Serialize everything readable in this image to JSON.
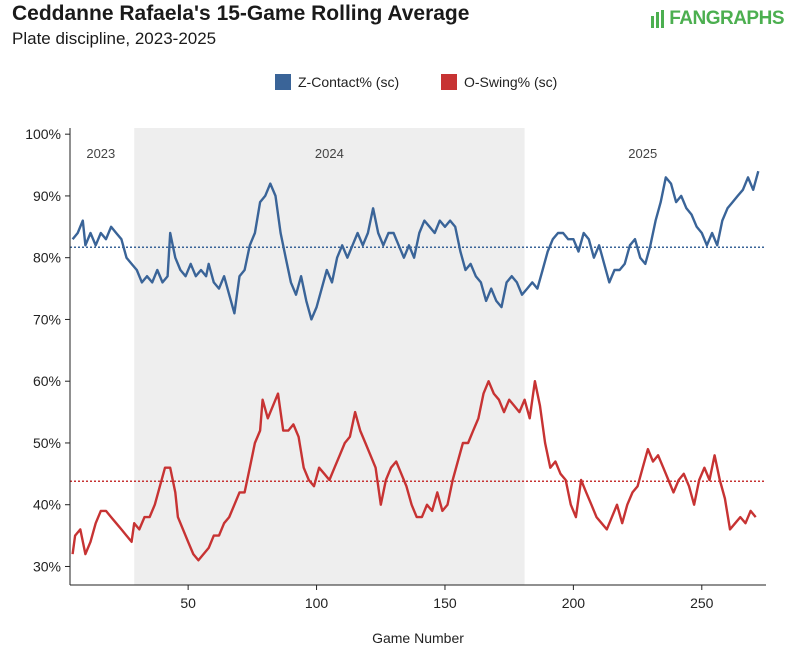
{
  "header": {
    "title": "Ceddanne Rafaela's 15-Game Rolling Average",
    "subtitle": "Plate discipline, 2023-2025",
    "logo": "FANGRAPHS"
  },
  "colors": {
    "zcontact": "#3a6498",
    "oswing": "#c73333",
    "shade": "#eeeeee",
    "logo": "#4caf50"
  },
  "chart_data": {
    "type": "line",
    "xlabel": "Game Number",
    "ylabel": "",
    "xlim": [
      4,
      275
    ],
    "ylim": [
      27,
      101
    ],
    "x_ticks": [
      50,
      100,
      150,
      200,
      250
    ],
    "y_ticks": [
      {
        "value": 30,
        "label": "30%"
      },
      {
        "value": 40,
        "label": "40%"
      },
      {
        "value": 50,
        "label": "50%"
      },
      {
        "value": 60,
        "label": "60%"
      },
      {
        "value": 70,
        "label": "70%"
      },
      {
        "value": 80,
        "label": "80%"
      },
      {
        "value": 90,
        "label": "90%"
      },
      {
        "value": 100,
        "label": "100%"
      }
    ],
    "seasons": [
      {
        "label": "2023",
        "start": 4,
        "end": 29,
        "label_x": 16,
        "shaded": false
      },
      {
        "label": "2024",
        "start": 29,
        "end": 181,
        "label_x": 105,
        "shaded": true
      },
      {
        "label": "2025",
        "start": 181,
        "end": 275,
        "label_x": 227,
        "shaded": false
      }
    ],
    "legend": {
      "position": "top-center"
    },
    "series": [
      {
        "name": "Z-Contact% (sc)",
        "color_key": "zcontact",
        "average": 81.7,
        "points": [
          [
            5,
            83
          ],
          [
            7,
            84
          ],
          [
            9,
            86
          ],
          [
            10,
            82
          ],
          [
            12,
            84
          ],
          [
            14,
            82
          ],
          [
            16,
            84
          ],
          [
            18,
            83
          ],
          [
            20,
            85
          ],
          [
            22,
            84
          ],
          [
            24,
            83
          ],
          [
            26,
            80
          ],
          [
            28,
            79
          ],
          [
            30,
            78
          ],
          [
            32,
            76
          ],
          [
            34,
            77
          ],
          [
            36,
            76
          ],
          [
            38,
            78
          ],
          [
            40,
            76
          ],
          [
            42,
            77
          ],
          [
            43,
            84
          ],
          [
            45,
            80
          ],
          [
            47,
            78
          ],
          [
            49,
            77
          ],
          [
            51,
            79
          ],
          [
            53,
            77
          ],
          [
            55,
            78
          ],
          [
            57,
            77
          ],
          [
            58,
            79
          ],
          [
            60,
            76
          ],
          [
            62,
            75
          ],
          [
            64,
            77
          ],
          [
            66,
            74
          ],
          [
            68,
            71
          ],
          [
            70,
            77
          ],
          [
            72,
            78
          ],
          [
            74,
            82
          ],
          [
            76,
            84
          ],
          [
            78,
            89
          ],
          [
            80,
            90
          ],
          [
            82,
            92
          ],
          [
            84,
            90
          ],
          [
            86,
            84
          ],
          [
            88,
            80
          ],
          [
            90,
            76
          ],
          [
            92,
            74
          ],
          [
            94,
            77
          ],
          [
            96,
            73
          ],
          [
            98,
            70
          ],
          [
            100,
            72
          ],
          [
            102,
            75
          ],
          [
            104,
            78
          ],
          [
            106,
            76
          ],
          [
            108,
            80
          ],
          [
            110,
            82
          ],
          [
            112,
            80
          ],
          [
            114,
            82
          ],
          [
            116,
            84
          ],
          [
            118,
            82
          ],
          [
            120,
            84
          ],
          [
            122,
            88
          ],
          [
            124,
            84
          ],
          [
            126,
            82
          ],
          [
            128,
            84
          ],
          [
            130,
            84
          ],
          [
            132,
            82
          ],
          [
            134,
            80
          ],
          [
            136,
            82
          ],
          [
            138,
            80
          ],
          [
            140,
            84
          ],
          [
            142,
            86
          ],
          [
            144,
            85
          ],
          [
            146,
            84
          ],
          [
            148,
            86
          ],
          [
            150,
            85
          ],
          [
            152,
            86
          ],
          [
            154,
            85
          ],
          [
            156,
            81
          ],
          [
            158,
            78
          ],
          [
            160,
            79
          ],
          [
            162,
            77
          ],
          [
            164,
            76
          ],
          [
            166,
            73
          ],
          [
            168,
            75
          ],
          [
            170,
            73
          ],
          [
            172,
            72
          ],
          [
            174,
            76
          ],
          [
            176,
            77
          ],
          [
            178,
            76
          ],
          [
            180,
            74
          ],
          [
            182,
            75
          ],
          [
            184,
            76
          ],
          [
            186,
            75
          ],
          [
            188,
            78
          ],
          [
            190,
            81
          ],
          [
            192,
            83
          ],
          [
            194,
            84
          ],
          [
            196,
            84
          ],
          [
            198,
            83
          ],
          [
            200,
            83
          ],
          [
            202,
            81
          ],
          [
            204,
            84
          ],
          [
            206,
            83
          ],
          [
            208,
            80
          ],
          [
            210,
            82
          ],
          [
            212,
            79
          ],
          [
            214,
            76
          ],
          [
            216,
            78
          ],
          [
            218,
            78
          ],
          [
            220,
            79
          ],
          [
            222,
            82
          ],
          [
            224,
            83
          ],
          [
            226,
            80
          ],
          [
            228,
            79
          ],
          [
            230,
            82
          ],
          [
            232,
            86
          ],
          [
            234,
            89
          ],
          [
            236,
            93
          ],
          [
            238,
            92
          ],
          [
            240,
            89
          ],
          [
            242,
            90
          ],
          [
            244,
            88
          ],
          [
            246,
            87
          ],
          [
            248,
            85
          ],
          [
            250,
            84
          ],
          [
            252,
            82
          ],
          [
            254,
            84
          ],
          [
            256,
            82
          ],
          [
            258,
            86
          ],
          [
            260,
            88
          ],
          [
            262,
            89
          ],
          [
            264,
            90
          ],
          [
            266,
            91
          ],
          [
            268,
            93
          ],
          [
            270,
            91
          ],
          [
            272,
            94
          ]
        ]
      },
      {
        "name": "O-Swing% (sc)",
        "color_key": "oswing",
        "average": 43.8,
        "points": [
          [
            5,
            32
          ],
          [
            6,
            35
          ],
          [
            8,
            36
          ],
          [
            10,
            32
          ],
          [
            12,
            34
          ],
          [
            14,
            37
          ],
          [
            16,
            39
          ],
          [
            18,
            39
          ],
          [
            20,
            38
          ],
          [
            22,
            37
          ],
          [
            24,
            36
          ],
          [
            26,
            35
          ],
          [
            28,
            34
          ],
          [
            29,
            37
          ],
          [
            31,
            36
          ],
          [
            33,
            38
          ],
          [
            35,
            38
          ],
          [
            37,
            40
          ],
          [
            39,
            43
          ],
          [
            41,
            46
          ],
          [
            43,
            46
          ],
          [
            45,
            42
          ],
          [
            46,
            38
          ],
          [
            48,
            36
          ],
          [
            50,
            34
          ],
          [
            52,
            32
          ],
          [
            54,
            31
          ],
          [
            56,
            32
          ],
          [
            58,
            33
          ],
          [
            60,
            35
          ],
          [
            62,
            35
          ],
          [
            64,
            37
          ],
          [
            66,
            38
          ],
          [
            68,
            40
          ],
          [
            70,
            42
          ],
          [
            72,
            42
          ],
          [
            74,
            46
          ],
          [
            76,
            50
          ],
          [
            78,
            52
          ],
          [
            79,
            57
          ],
          [
            81,
            54
          ],
          [
            83,
            56
          ],
          [
            85,
            58
          ],
          [
            87,
            52
          ],
          [
            89,
            52
          ],
          [
            91,
            53
          ],
          [
            93,
            51
          ],
          [
            95,
            46
          ],
          [
            97,
            44
          ],
          [
            99,
            43
          ],
          [
            101,
            46
          ],
          [
            103,
            45
          ],
          [
            105,
            44
          ],
          [
            107,
            46
          ],
          [
            109,
            48
          ],
          [
            111,
            50
          ],
          [
            113,
            51
          ],
          [
            115,
            55
          ],
          [
            117,
            52
          ],
          [
            119,
            50
          ],
          [
            121,
            48
          ],
          [
            123,
            46
          ],
          [
            125,
            40
          ],
          [
            127,
            44
          ],
          [
            129,
            46
          ],
          [
            131,
            47
          ],
          [
            133,
            45
          ],
          [
            135,
            43
          ],
          [
            137,
            40
          ],
          [
            139,
            38
          ],
          [
            141,
            38
          ],
          [
            143,
            40
          ],
          [
            145,
            39
          ],
          [
            147,
            42
          ],
          [
            149,
            39
          ],
          [
            151,
            40
          ],
          [
            153,
            44
          ],
          [
            155,
            47
          ],
          [
            157,
            50
          ],
          [
            159,
            50
          ],
          [
            161,
            52
          ],
          [
            163,
            54
          ],
          [
            165,
            58
          ],
          [
            167,
            60
          ],
          [
            169,
            58
          ],
          [
            171,
            57
          ],
          [
            173,
            55
          ],
          [
            175,
            57
          ],
          [
            177,
            56
          ],
          [
            179,
            55
          ],
          [
            181,
            57
          ],
          [
            183,
            54
          ],
          [
            185,
            60
          ],
          [
            187,
            56
          ],
          [
            189,
            50
          ],
          [
            191,
            46
          ],
          [
            193,
            47
          ],
          [
            195,
            45
          ],
          [
            197,
            44
          ],
          [
            199,
            40
          ],
          [
            201,
            38
          ],
          [
            203,
            44
          ],
          [
            205,
            42
          ],
          [
            207,
            40
          ],
          [
            209,
            38
          ],
          [
            211,
            37
          ],
          [
            213,
            36
          ],
          [
            215,
            38
          ],
          [
            217,
            40
          ],
          [
            219,
            37
          ],
          [
            221,
            40
          ],
          [
            223,
            42
          ],
          [
            225,
            43
          ],
          [
            227,
            46
          ],
          [
            229,
            49
          ],
          [
            231,
            47
          ],
          [
            233,
            48
          ],
          [
            235,
            46
          ],
          [
            237,
            44
          ],
          [
            239,
            42
          ],
          [
            241,
            44
          ],
          [
            243,
            45
          ],
          [
            245,
            43
          ],
          [
            247,
            40
          ],
          [
            249,
            44
          ],
          [
            251,
            46
          ],
          [
            253,
            44
          ],
          [
            255,
            48
          ],
          [
            257,
            44
          ],
          [
            259,
            41
          ],
          [
            261,
            36
          ],
          [
            263,
            37
          ],
          [
            265,
            38
          ],
          [
            267,
            37
          ],
          [
            269,
            39
          ],
          [
            271,
            38
          ]
        ]
      }
    ]
  }
}
